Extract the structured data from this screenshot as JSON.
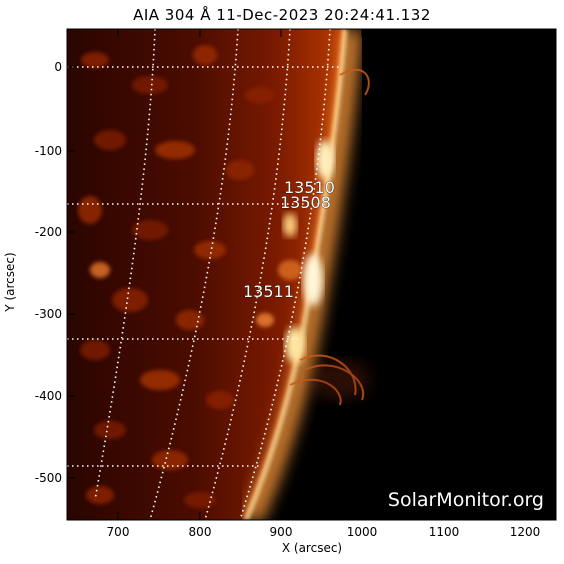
{
  "title": "AIA 304 Å 11-Dec-2023 20:24:41.132",
  "axes": {
    "x_label": "X (arcsec)",
    "y_label": "Y (arcsec)",
    "x_ticks": [
      "700",
      "800",
      "900",
      "1000",
      "1100",
      "1200"
    ],
    "y_ticks": [
      "0",
      "-100",
      "-200",
      "-300",
      "-400",
      "-500"
    ]
  },
  "regions": [
    "13510",
    "13508",
    "13511"
  ],
  "watermark": "SolarMonitor.org",
  "colors": {
    "background": "#ffffff",
    "sky": "#000000",
    "disk_dark": "#3a0800",
    "disk_mid": "#8a1f00",
    "limb_bright": "#fff0c8",
    "grid": "#ffffff"
  }
}
